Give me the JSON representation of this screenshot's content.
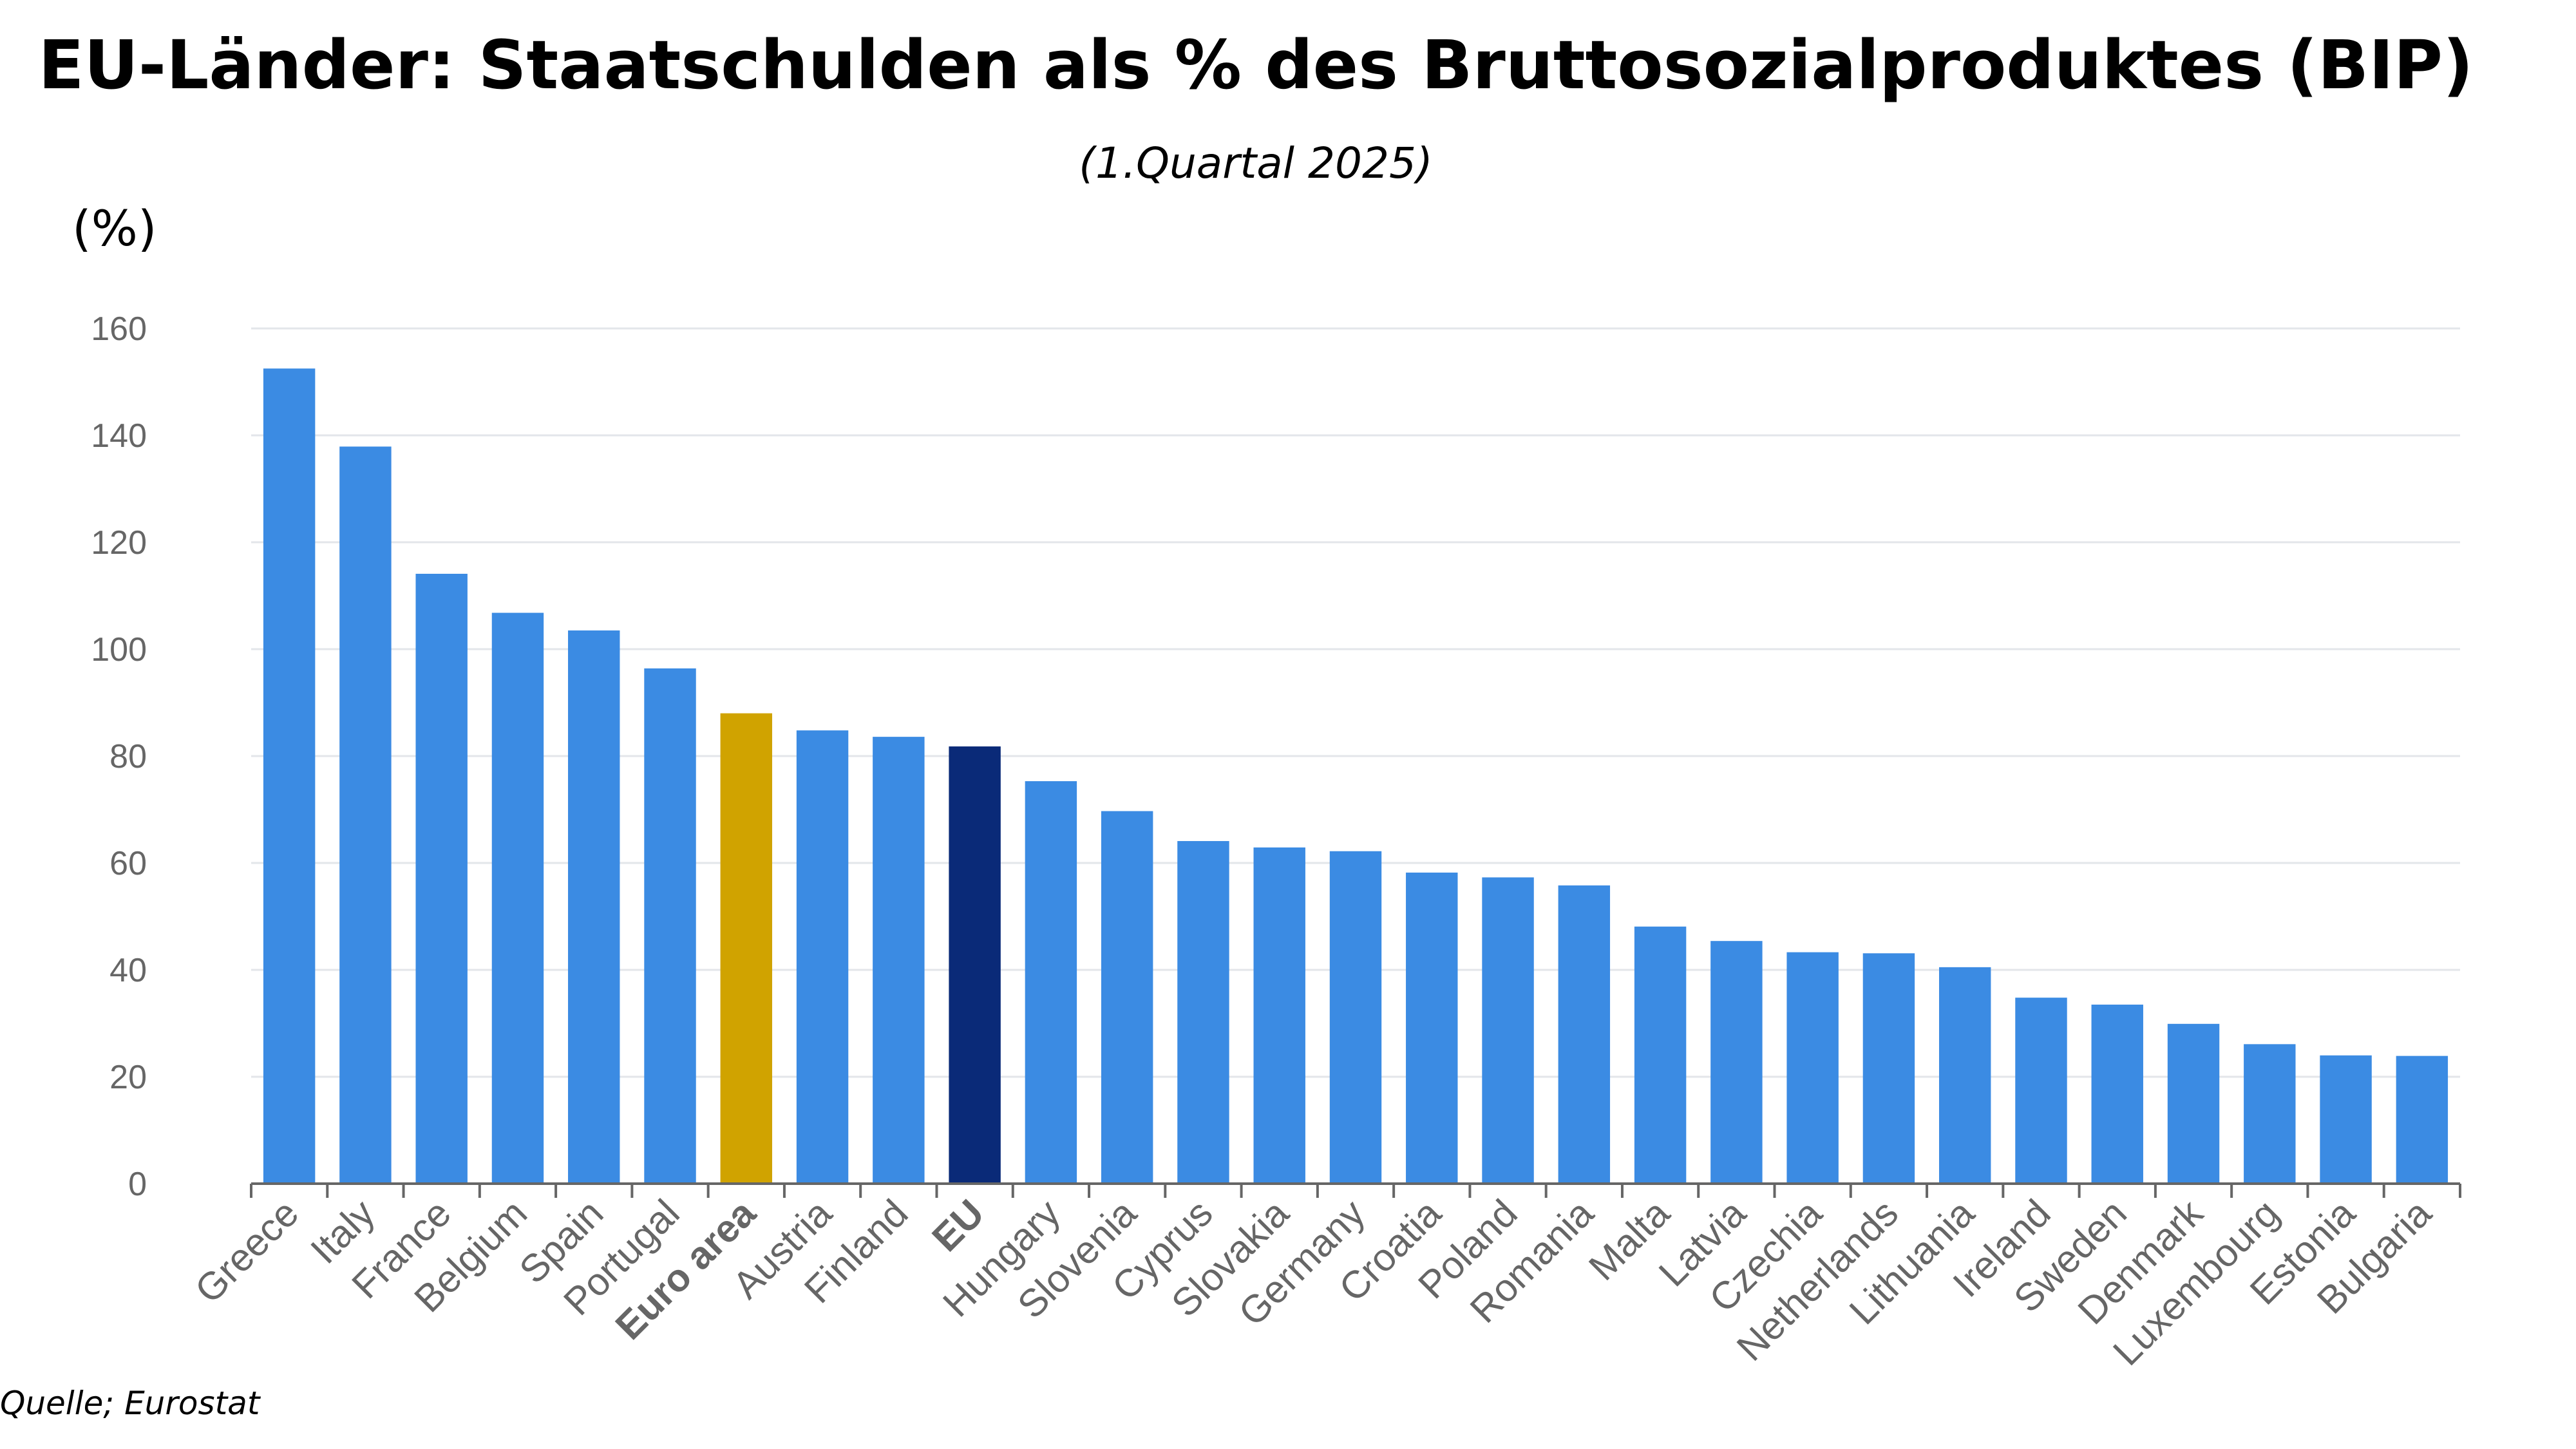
{
  "chart_data": {
    "type": "bar",
    "title": "EU-Länder: Staatschulden als % des Bruttosozialproduktes (BIP)",
    "subtitle": "(1.Quartal 2025)",
    "ylabel": "(%)",
    "source": "Quelle; Eurostat",
    "ylim": [
      0,
      160
    ],
    "yticks": [
      0,
      20,
      40,
      60,
      80,
      100,
      120,
      140,
      160
    ],
    "grid": true,
    "categories": [
      "Greece",
      "Italy",
      "France",
      "Belgium",
      "Spain",
      "Portugal",
      "Euro area",
      "Austria",
      "Finland",
      "EU",
      "Hungary",
      "Slovenia",
      "Cyprus",
      "Slovakia",
      "Germany",
      "Croatia",
      "Poland",
      "Romania",
      "Malta",
      "Latvia",
      "Czechia",
      "Netherlands",
      "Lithuania",
      "Ireland",
      "Sweden",
      "Denmark",
      "Luxembourg",
      "Estonia",
      "Bulgaria"
    ],
    "values": [
      152.5,
      137.9,
      114.1,
      106.8,
      103.5,
      96.4,
      88.0,
      84.8,
      83.6,
      81.8,
      75.3,
      69.7,
      64.1,
      62.9,
      62.2,
      58.2,
      57.3,
      55.8,
      48.1,
      45.4,
      43.3,
      43.1,
      40.5,
      34.8,
      33.5,
      29.9,
      26.1,
      24.0,
      23.9
    ],
    "bold_categories": [
      "Euro area",
      "EU"
    ],
    "colors": {
      "default": "#3b8be3",
      "Euro area": "#d0a300",
      "EU": "#0a2a78"
    }
  }
}
